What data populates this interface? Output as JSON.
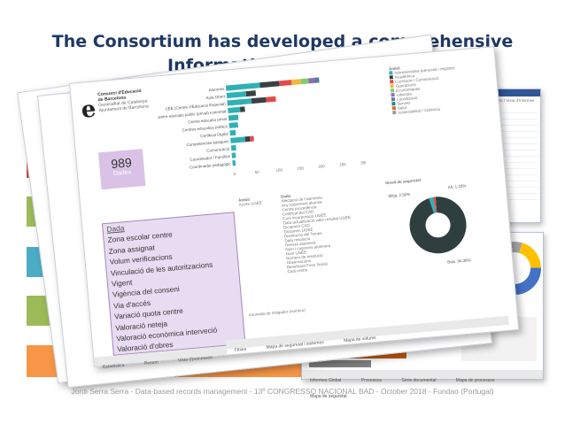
{
  "slide": {
    "title_line1": "The Consortium has developed a comprehensive",
    "title_line2": "Information Gover",
    "footer": "Jordi Serra Serra - Data-based records management - 13º CONGRESSO NACIONAL BAD - October 2018 - Fundao (Portugal)"
  },
  "colors": {
    "title": "#1f3864",
    "purple": "#d9c2e6",
    "teal": "#2fb1b3",
    "dark": "#3b4045",
    "orange": "#f79646"
  },
  "dashboard": {
    "org_line1": "Consorci d'Educació",
    "org_line2": "de Barcelona",
    "org_line3": "Generalitat de Catalunya",
    "org_line4": "Ajuntament de Barcelona",
    "kpi_value": "989",
    "kpi_label": "Dades",
    "filter_header": "Dada",
    "filter_items": [
      "Zona escolar centre",
      "Zona assignat",
      "Volum verificacions",
      "Vinculació de les autoritzacions",
      "Vigent",
      "Vigència del conseni",
      "Via d'accés",
      "Variació quota centre",
      "Valoració neteja",
      "Valoració econòmica interveció",
      "Valoració d'obres"
    ],
    "bar_labels": [
      "Alumnes",
      "Aula Obert",
      "CEE (Centre d'Educació Especial)",
      "Centre educatiu públic (privat) concertat",
      "Centre educatiu privat",
      "Centres educatius públics",
      "Certificat Digital",
      "Competencies bàsiques",
      "Comunicació",
      "Coordinador / Famílies",
      "Coordinador pedagògic"
    ],
    "axis_ticks": [
      "0",
      "50",
      "100",
      "150",
      "200",
      "250",
      "300"
    ],
    "legend_title": "Àmbit",
    "legend_items": [
      "Administrativa (personal i registre)",
      "Acadèmica",
      "Contracte / Comunicació",
      "Operacions",
      "Econòmiques",
      "Laborals",
      "Localització",
      "Serveis",
      "Salut",
      "Vulnerabilitat / Violència"
    ],
    "table_col1": "Àmbit",
    "table_col2": "Dada",
    "table_row_col1": "Accés UGEE",
    "table_rows": [
      "Afectació de l'alumne/a",
      "Any naixement alumne",
      "Centre procedència",
      "Certificat del CAD",
      "Curs incorporació UGEE",
      "Data actualització valor resultat UGEE",
      "Dictamen CAD",
      "Dictamen UGEE",
      "Distribució del Temps",
      "Data resolució",
      "Génere alumne/a",
      "Nom i cognoms alumne/a",
      "Nom UGEE",
      "Número de resolució",
      "Observacions",
      "Beneficiari Fons Social",
      "Codi centre"
    ],
    "donut_title": "Nivell de seguretat",
    "donut_labels": [
      "Baix, 94.36%",
      "Mitjà, 2.50%",
      "Alt, 1.23%"
    ],
    "donut_values": [
      94.36,
      2.5,
      1.23
    ],
    "bottom_label": "Anomalia de mitigador (número)",
    "tabs": [
      "Fitxes",
      "Mapa de seguretat i sistemes",
      "Mapa de volums"
    ],
    "back_tabs": [
      "Estadística",
      "Resum",
      "Vista d'processos"
    ]
  },
  "back_panels": {
    "right_top_header": "Administració de l'Anàlisi / Vista d'Informes",
    "right_bottom_header": "Informes Global",
    "tabs": [
      "Informes Global",
      "Processos",
      "Sèrie documental",
      "Mapa de processos",
      "Mapa de seguretat"
    ]
  },
  "chart_data": {
    "type": "pie",
    "title": "Nivell de seguretat",
    "categories": [
      "Baix",
      "Mitjà",
      "Alt"
    ],
    "values": [
      94.36,
      2.5,
      1.23
    ]
  }
}
